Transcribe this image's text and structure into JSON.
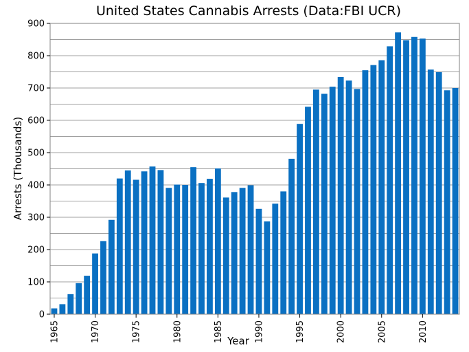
{
  "chart_data": {
    "type": "bar",
    "title": "United States Cannabis Arrests (Data:FBI UCR)",
    "xlabel": "Year",
    "ylabel": "Arrests (Thousands)",
    "ylim": [
      0,
      900
    ],
    "yticks": [
      0,
      100,
      200,
      300,
      400,
      500,
      600,
      700,
      800,
      900
    ],
    "minor_grid_step": 50,
    "grid": true,
    "bar_color": "#0a70c2",
    "categories": [
      1965,
      1966,
      1967,
      1968,
      1969,
      1970,
      1971,
      1972,
      1973,
      1974,
      1975,
      1976,
      1977,
      1978,
      1979,
      1980,
      1981,
      1982,
      1983,
      1984,
      1985,
      1986,
      1987,
      1988,
      1989,
      1990,
      1991,
      1992,
      1993,
      1994,
      1995,
      1996,
      1997,
      1998,
      1999,
      2000,
      2001,
      2002,
      2003,
      2004,
      2005,
      2006,
      2007,
      2008,
      2009,
      2010,
      2011,
      2012,
      2013,
      2014
    ],
    "values": [
      18,
      31,
      62,
      96,
      119,
      188,
      226,
      292,
      420,
      445,
      416,
      442,
      457,
      446,
      391,
      401,
      400,
      455,
      406,
      419,
      451,
      361,
      378,
      391,
      399,
      326,
      287,
      342,
      380,
      481,
      589,
      642,
      695,
      682,
      704,
      734,
      723,
      697,
      755,
      771,
      786,
      829,
      872,
      848,
      858,
      853,
      757,
      749,
      693,
      700
    ],
    "xtick_labels": [
      "1965",
      "1970",
      "1975",
      "1980",
      "1985",
      "1990",
      "1995",
      "2000",
      "2005",
      "2010"
    ]
  }
}
